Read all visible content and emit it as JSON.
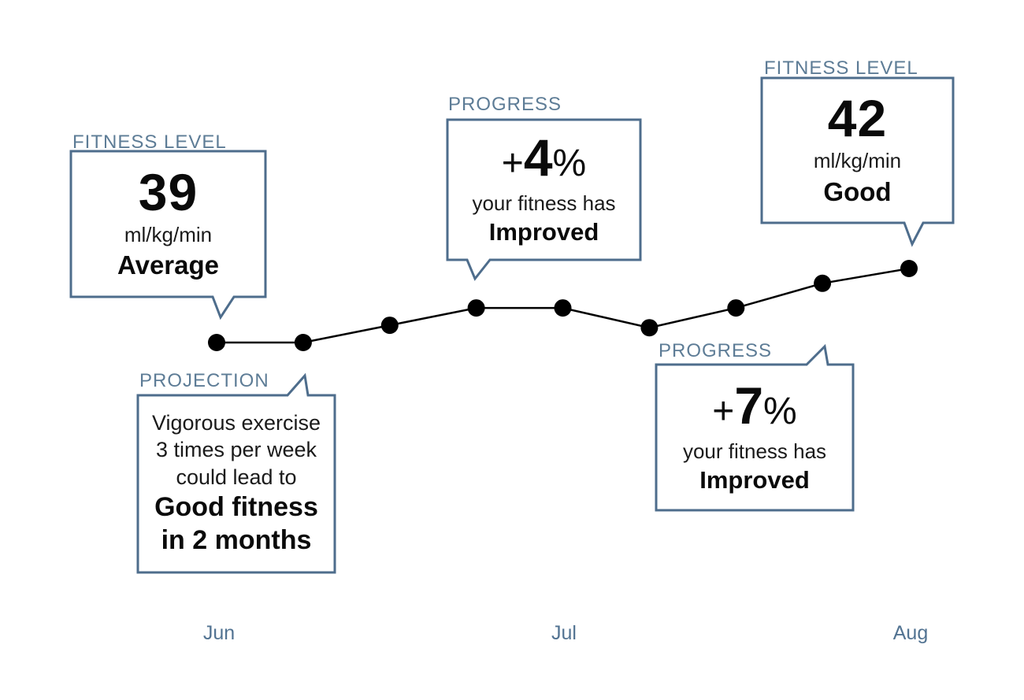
{
  "chart_data": {
    "type": "line",
    "series_name": "fitness level",
    "unit": "ml/kg/min",
    "x": [
      0,
      1,
      2,
      3,
      4,
      5,
      6,
      7,
      8
    ],
    "values": [
      39,
      39,
      39.7,
      40.4,
      40.4,
      39.6,
      40.4,
      41.4,
      42
    ],
    "x_tick_labels": [
      "Jun",
      "Jul",
      "Aug"
    ],
    "x_tick_positions": [
      0,
      4,
      8
    ],
    "ylim": [
      38.5,
      42.5
    ],
    "grid": false,
    "legend": false,
    "marker": "filled-circle",
    "annotations": [
      {
        "label": "FITNESS LEVEL",
        "value": "39",
        "unit": "ml/kg/min",
        "rating": "Average",
        "points_to_index": 0
      },
      {
        "label": "PROJECTION",
        "text": "Vigorous exercise 3 times per week could lead to Good fitness in 2 months",
        "points_to_index": 1
      },
      {
        "label": "PROGRESS",
        "value": "+4%",
        "text": "your fitness has Improved",
        "points_to_index": 3
      },
      {
        "label": "PROGRESS",
        "value": "+7%",
        "text": "your fitness has Improved",
        "points_to_index": 7
      },
      {
        "label": "FITNESS LEVEL",
        "value": "42",
        "unit": "ml/kg/min",
        "rating": "Good",
        "points_to_index": 8
      }
    ]
  },
  "callouts": {
    "fitness_start": {
      "label": "FITNESS LEVEL",
      "value": "39",
      "unit": "ml/kg/min",
      "rating": "Average"
    },
    "progress_mid": {
      "label": "PROGRESS",
      "sign": "+",
      "value": "4",
      "percent": "%",
      "line1": "your fitness has",
      "line2": "Improved"
    },
    "fitness_end": {
      "label": "FITNESS LEVEL",
      "value": "42",
      "unit": "ml/kg/min",
      "rating": "Good"
    },
    "projection": {
      "label": "PROJECTION",
      "line1": "Vigorous exercise",
      "line2": "3 times per week",
      "line3": "could lead to",
      "bold1": "Good fitness",
      "bold2": "in 2 months"
    },
    "progress_end": {
      "label": "PROGRESS",
      "sign": "+",
      "value": "7",
      "percent": "%",
      "line1": "your fitness has",
      "line2": "Improved"
    }
  },
  "axis": {
    "months": [
      "Jun",
      "Jul",
      "Aug"
    ]
  },
  "colors": {
    "background": "#ffffff",
    "bubble_border": "#4e6d8c",
    "label_text": "#5d7c96",
    "axis_text": "#527392",
    "line": "#000000",
    "dot": "#000000",
    "body_text": "#0a0a0a"
  }
}
